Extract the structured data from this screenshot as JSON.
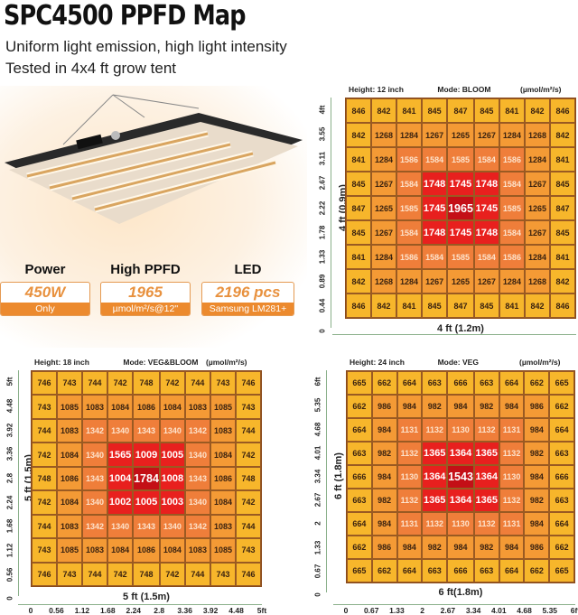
{
  "title": "SPC4500 PPFD Map",
  "subtitle1": "Uniform light emission, high light intensity",
  "subtitle2": "Tested in 4x4 ft grow tent",
  "specs": [
    {
      "heading": "Power",
      "value": "450W",
      "unit": "Only"
    },
    {
      "heading": "High PPFD",
      "value": "1965",
      "unit": "µmol/m²/s@12''"
    },
    {
      "heading": "LED",
      "value": "2196 pcs",
      "unit": "Samsung LM281+"
    }
  ],
  "colors": {
    "edge": "#f7b62b",
    "ring1": "#f49a35",
    "ring2": "#ef7e3a",
    "ring3": "#e8201e",
    "center": "#c40f16",
    "accent": "#ec8a2e"
  },
  "chart_data": [
    {
      "type": "heatmap",
      "height": "Height: 12 inch",
      "mode": "Mode: BLOOM",
      "unit": "(µmol/m²/s)",
      "ylabel": "4 ft (0.9m)",
      "xlabel": "4 ft (1.2m)",
      "yticks": [
        "4ft",
        "3.55",
        "3.11",
        "2.67",
        "2.22",
        "1.78",
        "1.33",
        "0.89",
        "0.44",
        "0"
      ],
      "xticks": [],
      "values": [
        [
          846,
          842,
          841,
          845,
          847,
          845,
          841,
          842,
          846
        ],
        [
          842,
          1268,
          1284,
          1267,
          1265,
          1267,
          1284,
          1268,
          842
        ],
        [
          841,
          1284,
          1586,
          1584,
          1585,
          1584,
          1586,
          1284,
          841
        ],
        [
          845,
          1267,
          1584,
          1748,
          1745,
          1748,
          1584,
          1267,
          845
        ],
        [
          847,
          1265,
          1585,
          1745,
          1965,
          1745,
          1585,
          1265,
          847
        ],
        [
          845,
          1267,
          1584,
          1748,
          1745,
          1748,
          1584,
          1267,
          845
        ],
        [
          841,
          1284,
          1586,
          1584,
          1585,
          1584,
          1586,
          1284,
          841
        ],
        [
          842,
          1268,
          1284,
          1267,
          1265,
          1267,
          1284,
          1268,
          842
        ],
        [
          846,
          842,
          841,
          845,
          847,
          845,
          841,
          842,
          846
        ]
      ]
    },
    {
      "type": "heatmap",
      "height": "Height: 18 inch",
      "mode": "Mode: VEG&BLOOM",
      "unit": "(µmol/m²/s)",
      "ylabel": "5 ft (1.5m)",
      "xlabel": "5 ft (1.5m)",
      "yticks": [
        "5ft",
        "4.48",
        "3.92",
        "3.36",
        "2.8",
        "2.24",
        "1.68",
        "1.12",
        "0.56",
        "0"
      ],
      "xticks": [
        "0",
        "0.56",
        "1.12",
        "1.68",
        "2.24",
        "2.8",
        "3.36",
        "3.92",
        "4.48",
        "5ft"
      ],
      "values": [
        [
          746,
          743,
          744,
          742,
          748,
          742,
          744,
          743,
          746
        ],
        [
          743,
          1085,
          1083,
          1084,
          1086,
          1084,
          1083,
          1085,
          743
        ],
        [
          744,
          1083,
          1342,
          1340,
          1343,
          1340,
          1342,
          1083,
          744
        ],
        [
          742,
          1084,
          1340,
          1565,
          1009,
          1005,
          1340,
          1084,
          742
        ],
        [
          748,
          1086,
          1343,
          1004,
          1784,
          1008,
          1343,
          1086,
          748
        ],
        [
          742,
          1084,
          1340,
          1002,
          1005,
          1003,
          1340,
          1084,
          742
        ],
        [
          744,
          1083,
          1342,
          1340,
          1343,
          1340,
          1342,
          1083,
          744
        ],
        [
          743,
          1085,
          1083,
          1084,
          1086,
          1084,
          1083,
          1085,
          743
        ],
        [
          746,
          743,
          744,
          742,
          748,
          742,
          744,
          743,
          746
        ]
      ]
    },
    {
      "type": "heatmap",
      "height": "Height: 24 inch",
      "mode": "Mode: VEG",
      "unit": "(µmol/m²/s)",
      "ylabel": "6 ft (1.8m)",
      "xlabel": "6 ft(1.8m)",
      "yticks": [
        "6ft",
        "5.35",
        "4.68",
        "4.01",
        "3.34",
        "2.67",
        "2",
        "1.33",
        "0.67",
        "0"
      ],
      "xticks": [
        "0",
        "0.67",
        "1.33",
        "2",
        "2.67",
        "3.34",
        "4.01",
        "4.68",
        "5.35",
        "6ft"
      ],
      "values": [
        [
          665,
          662,
          664,
          663,
          666,
          663,
          664,
          662,
          665
        ],
        [
          662,
          986,
          984,
          982,
          984,
          982,
          984,
          986,
          662
        ],
        [
          664,
          984,
          1131,
          1132,
          1130,
          1132,
          1131,
          984,
          664
        ],
        [
          663,
          982,
          1132,
          1365,
          1364,
          1365,
          1132,
          982,
          663
        ],
        [
          666,
          984,
          1130,
          1364,
          1543,
          1364,
          1130,
          984,
          666
        ],
        [
          663,
          982,
          1132,
          1365,
          1364,
          1365,
          1132,
          982,
          663
        ],
        [
          664,
          984,
          1131,
          1132,
          1130,
          1132,
          1131,
          984,
          664
        ],
        [
          662,
          986,
          984,
          982,
          984,
          982,
          984,
          986,
          662
        ],
        [
          665,
          662,
          664,
          663,
          666,
          663,
          664,
          662,
          665
        ]
      ]
    }
  ]
}
